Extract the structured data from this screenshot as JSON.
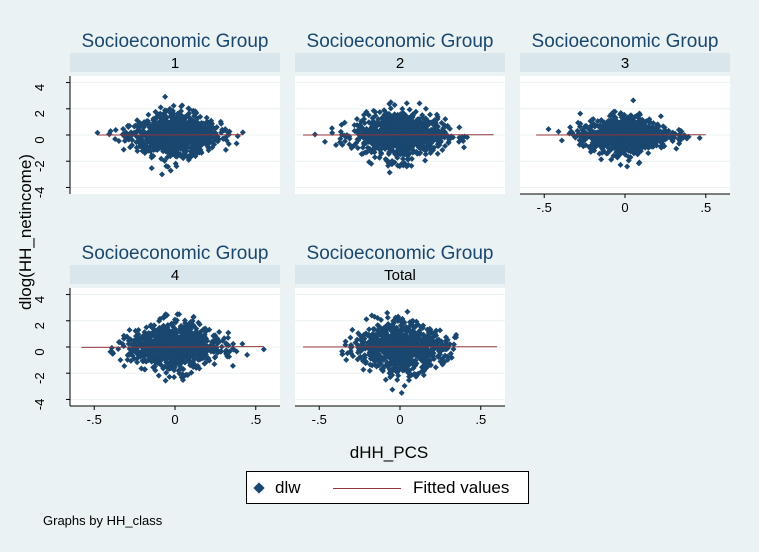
{
  "chart_data": {
    "type": "scatter",
    "figure_title": "",
    "ylabel": "dlog(HH_netincome)",
    "xlabel": "dHH_PCS",
    "xlim": [
      -0.65,
      0.65
    ],
    "ylim": [
      -4.5,
      4.5
    ],
    "xticks": [
      -0.5,
      0,
      0.5
    ],
    "xticklabels": [
      "-.5",
      "0",
      ".5"
    ],
    "yticks": [
      4,
      2,
      0,
      -2,
      -4
    ],
    "yticklabels": [
      "4",
      "2",
      "0",
      "-2",
      "-4"
    ],
    "grid": true,
    "legend_position": "bottom",
    "series": [
      {
        "name": "dlw",
        "kind": "marker",
        "color": "#1a476f"
      },
      {
        "name": "Fitted values",
        "kind": "line",
        "color": "#90353b"
      }
    ],
    "panel_title": "Socioeconomic Group",
    "panels": [
      {
        "label": "1",
        "x_range": [
          -0.48,
          0.42
        ],
        "y_range": [
          -3.0,
          3.5
        ],
        "spread": 1.0,
        "fit": [
          [
            -0.48,
            0.0
          ],
          [
            0.42,
            0.02
          ]
        ]
      },
      {
        "label": "2",
        "x_range": [
          -0.6,
          0.58
        ],
        "y_range": [
          -3.2,
          3.6
        ],
        "spread": 1.0,
        "fit": [
          [
            -0.6,
            0.0
          ],
          [
            0.58,
            0.02
          ]
        ]
      },
      {
        "label": "3",
        "x_range": [
          -0.55,
          0.5
        ],
        "y_range": [
          -2.6,
          3.3
        ],
        "spread": 0.8,
        "fit": [
          [
            -0.55,
            0.0
          ],
          [
            0.5,
            0.02
          ]
        ]
      },
      {
        "label": "4",
        "x_range": [
          -0.58,
          0.55
        ],
        "y_range": [
          -3.8,
          2.5
        ],
        "spread": 1.0,
        "fit": [
          [
            -0.58,
            -0.03
          ],
          [
            0.55,
            0.03
          ]
        ]
      },
      {
        "label": "Total",
        "x_range": [
          -0.6,
          0.6
        ],
        "y_range": [
          -3.7,
          3.6
        ],
        "spread": 1.05,
        "fit": [
          [
            -0.6,
            0.0
          ],
          [
            0.6,
            0.02
          ]
        ]
      }
    ],
    "note": "Graphs by HH_class"
  },
  "legend": {
    "dlw": "dlw",
    "fitted": "Fitted values"
  },
  "colors": {
    "background": "#eaf2f3",
    "plot": "#ffffff",
    "strip": "#d9e6eb",
    "marker": "#1a476f",
    "fit_line": "#90353b",
    "title": "#1a476f"
  }
}
